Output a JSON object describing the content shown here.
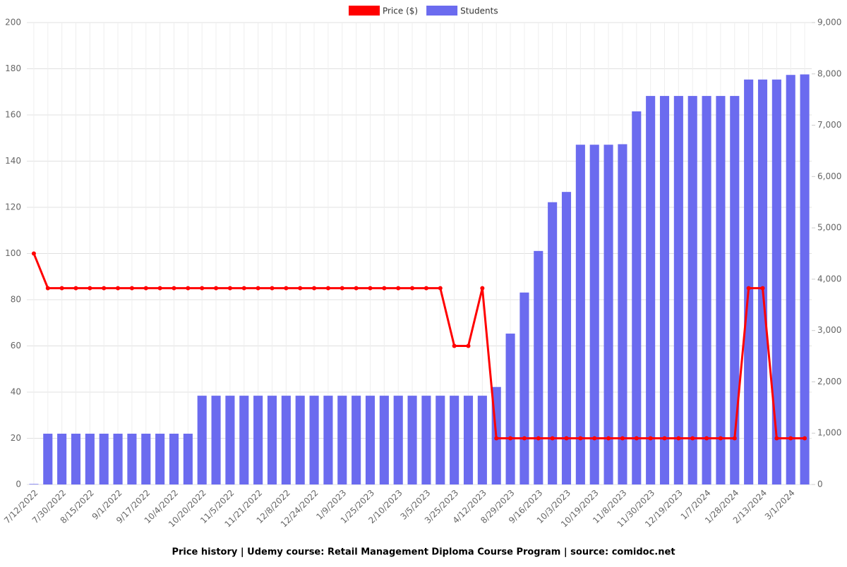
{
  "chart_data": {
    "type": "bar-line",
    "title": "Price history | Udemy course: Retail Management Diploma Course Program | source: comidoc.net",
    "categories": [
      "7/12/2022",
      null,
      "7/30/2022",
      null,
      "8/15/2022",
      null,
      "9/1/2022",
      null,
      "9/17/2022",
      null,
      "10/4/2022",
      null,
      "10/20/2022",
      null,
      "11/5/2022",
      null,
      "11/21/2022",
      null,
      "12/8/2022",
      null,
      "12/24/2022",
      null,
      "1/9/2023",
      null,
      "1/25/2023",
      null,
      "2/10/2023",
      null,
      "3/5/2023",
      null,
      "3/25/2023",
      null,
      "4/12/2023",
      null,
      "8/29/2023",
      null,
      "9/16/2023",
      null,
      "10/3/2023",
      null,
      "10/19/2023",
      null,
      "11/8/2023",
      null,
      "11/30/2023",
      null,
      "12/19/2023",
      null,
      "1/7/2024",
      null,
      "1/28/2024",
      null,
      "2/13/2024",
      null,
      "3/1/2024",
      null
    ],
    "series": [
      {
        "name": "Price ($)",
        "color": "#ff0000",
        "kind": "line",
        "axis": "y",
        "values": [
          100,
          85,
          85,
          85,
          85,
          85,
          85,
          85,
          85,
          85,
          85,
          85,
          85,
          85,
          85,
          85,
          85,
          85,
          85,
          85,
          85,
          85,
          85,
          85,
          85,
          85,
          85,
          85,
          85,
          85,
          60,
          60,
          85,
          20,
          20,
          20,
          20,
          20,
          20,
          20,
          20,
          20,
          20,
          20,
          20,
          20,
          20,
          20,
          20,
          20,
          20,
          85,
          85,
          20,
          20,
          20
        ]
      },
      {
        "name": "Students",
        "color": "#6b6bef",
        "kind": "bar",
        "axis": "y2",
        "values": [
          10,
          990,
          990,
          990,
          990,
          990,
          990,
          990,
          990,
          990,
          990,
          990,
          1730,
          1730,
          1730,
          1730,
          1730,
          1730,
          1730,
          1730,
          1730,
          1730,
          1730,
          1730,
          1730,
          1730,
          1730,
          1730,
          1730,
          1730,
          1730,
          1730,
          1730,
          1900,
          2940,
          3740,
          4550,
          5500,
          5700,
          6620,
          6620,
          6620,
          6630,
          7270,
          7570,
          7570,
          7570,
          7570,
          7570,
          7570,
          7570,
          7890,
          7890,
          7890,
          7980,
          7990
        ]
      }
    ],
    "ylim": [
      0,
      200
    ],
    "yticks": [
      0,
      20,
      40,
      60,
      80,
      100,
      120,
      140,
      160,
      180,
      200
    ],
    "y2lim": [
      0,
      9000
    ],
    "y2ticks": [
      0,
      {
        "value": 1000,
        "label": "1,000"
      },
      {
        "value": 2000,
        "label": "2,000"
      },
      {
        "value": 3000,
        "label": "3,000"
      },
      {
        "value": 4000,
        "label": "4,000"
      },
      {
        "value": 5000,
        "label": "5,000"
      },
      {
        "value": 6000,
        "label": "6,000"
      },
      {
        "value": 7000,
        "label": "7,000"
      },
      {
        "value": 8000,
        "label": "8,000"
      },
      {
        "value": 9000,
        "label": "9,000"
      }
    ],
    "grid": true,
    "legend": "top"
  }
}
